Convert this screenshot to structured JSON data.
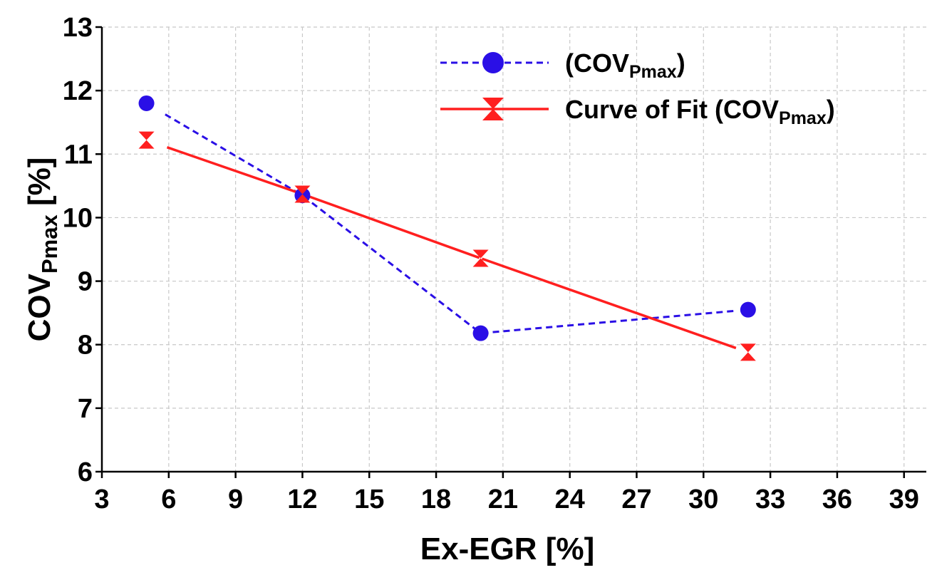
{
  "chart_data": {
    "type": "line",
    "xlabel": "Ex-EGR [%]",
    "ylabel": {
      "main": "COV",
      "sub": "Pmax",
      "suffix": " [%]"
    },
    "xlim": [
      3,
      40
    ],
    "ylim": [
      6,
      13
    ],
    "xticks": [
      3,
      6,
      9,
      12,
      15,
      18,
      21,
      24,
      27,
      30,
      33,
      36,
      39
    ],
    "yticks": [
      6,
      7,
      8,
      9,
      10,
      11,
      12,
      13
    ],
    "grid": true,
    "legend_position": "top-right",
    "series": [
      {
        "label_main": "(COV",
        "label_sub": "Pmax",
        "label_suffix": ")",
        "marker": "circle",
        "line_style": "dashed",
        "color": "#2a0fe6",
        "points": [
          {
            "x": 5,
            "y": 11.8
          },
          {
            "x": 12,
            "y": 10.35
          },
          {
            "x": 20,
            "y": 8.18
          },
          {
            "x": 32,
            "y": 8.55
          }
        ]
      },
      {
        "label_main": "Curve of Fit (COV",
        "label_sub": "Pmax",
        "label_suffix": ")",
        "marker": "hourglass",
        "line_style": "solid",
        "color": "#ff1f1f",
        "points": [
          {
            "x": 5,
            "y": 11.22
          },
          {
            "x": 12,
            "y": 10.37
          },
          {
            "x": 20,
            "y": 9.36
          },
          {
            "x": 32,
            "y": 7.88
          }
        ]
      }
    ]
  }
}
